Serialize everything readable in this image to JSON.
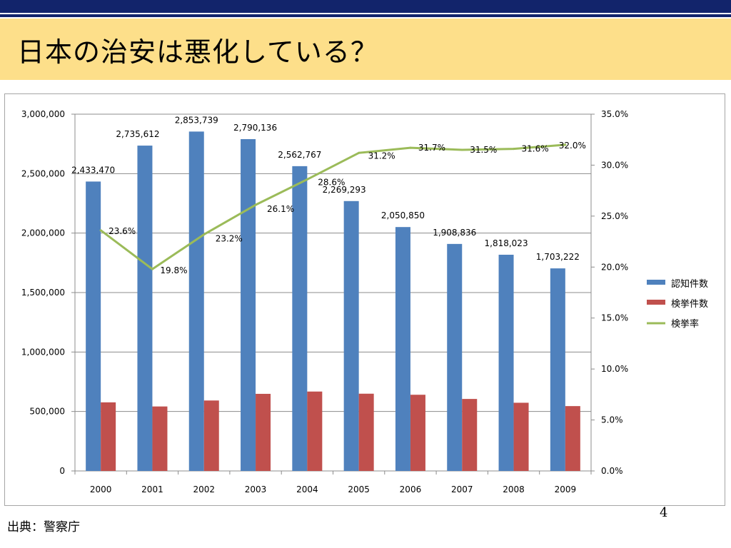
{
  "slide": {
    "title": "日本の治安は悪化している？",
    "source": "出典：警察庁",
    "page_number": "4"
  },
  "colors": {
    "header_bar": "#12246b",
    "title_band": "#fddf8a",
    "series_recognized": "#4f81bd",
    "series_cleared": "#c0504d",
    "series_rate": "#9bbb59"
  },
  "chart_data": {
    "type": "bar",
    "categories": [
      "2000",
      "2001",
      "2002",
      "2003",
      "2004",
      "2005",
      "2006",
      "2007",
      "2008",
      "2009"
    ],
    "series": [
      {
        "name": "認知件数",
        "type": "bar",
        "axis": "left",
        "values": [
          2433470,
          2735612,
          2853739,
          2790136,
          2562767,
          2269293,
          2050850,
          1908836,
          1818023,
          1703222
        ],
        "labels": [
          "2,433,470",
          "2,735,612",
          "2,853,739",
          "2,790,136",
          "2,562,767",
          "2,269,293",
          "2,050,850",
          "1,908,836",
          "1,818,023",
          "1,703,222"
        ]
      },
      {
        "name": "検挙件数",
        "type": "bar",
        "axis": "left",
        "values": [
          576771,
          542115,
          592359,
          648319,
          667620,
          649503,
          640657,
          605358,
          573392,
          545239
        ]
      },
      {
        "name": "検挙率",
        "type": "line",
        "axis": "right",
        "values": [
          23.6,
          19.8,
          23.2,
          26.1,
          28.6,
          31.2,
          31.7,
          31.5,
          31.6,
          32.0
        ],
        "labels": [
          "23.6%",
          "19.8%",
          "23.2%",
          "26.1%",
          "28.6%",
          "31.2%",
          "31.7%",
          "31.5%",
          "31.6%",
          "32.0%"
        ]
      }
    ],
    "y_left": {
      "ylim": [
        0,
        3000000
      ],
      "ticks": [
        0,
        500000,
        1000000,
        1500000,
        2000000,
        2500000,
        3000000
      ],
      "tick_labels": [
        "0",
        "500,000",
        "1,000,000",
        "1,500,000",
        "2,000,000",
        "2,500,000",
        "3,000,000"
      ]
    },
    "y_right": {
      "ylim": [
        0,
        35
      ],
      "ticks": [
        0,
        5,
        10,
        15,
        20,
        25,
        30,
        35
      ],
      "tick_labels": [
        "0.0%",
        "5.0%",
        "10.0%",
        "15.0%",
        "20.0%",
        "25.0%",
        "30.0%",
        "35.0%"
      ]
    },
    "grid": true,
    "legend": "right"
  }
}
